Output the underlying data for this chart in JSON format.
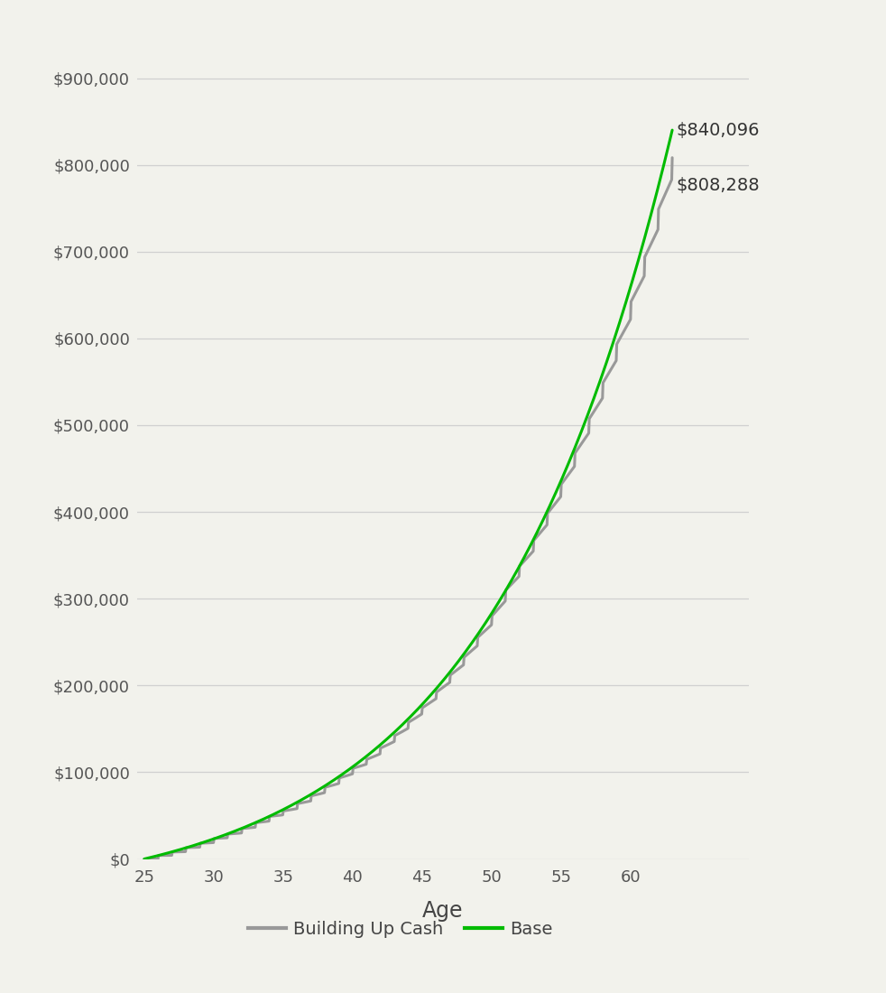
{
  "title": "",
  "xlabel": "Age",
  "ylabel": "",
  "background_color": "#f2f2ec",
  "grid_color": "#d0d0d0",
  "age_start": 25,
  "age_end": 63,
  "base_final": 840096,
  "cash_final": 808288,
  "base_color": "#00bb00",
  "cash_color": "#999999",
  "base_label": "Base",
  "cash_label": "Building Up Cash",
  "ylim": [
    0,
    950000
  ],
  "yticks": [
    0,
    100000,
    200000,
    300000,
    400000,
    500000,
    600000,
    700000,
    800000,
    900000
  ],
  "xticks": [
    25,
    30,
    35,
    40,
    45,
    50,
    55,
    60
  ],
  "line_width": 2.2,
  "annotation_fontsize": 14,
  "label_fontsize": 17,
  "tick_fontsize": 13,
  "legend_fontsize": 14
}
